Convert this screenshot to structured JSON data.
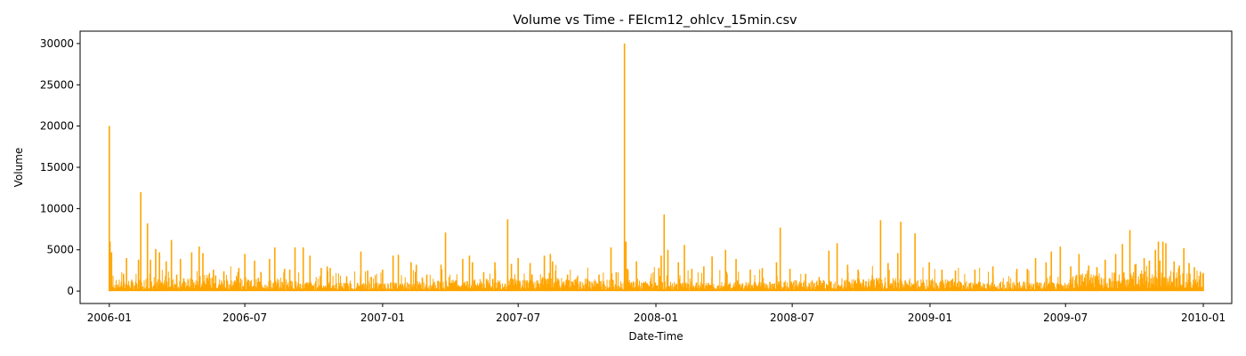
{
  "chart_data": {
    "type": "line",
    "title": "Volume vs Time - FEIcm12_ohlcv_15min.csv",
    "xlabel": "Date-Time",
    "ylabel": "Volume",
    "line_color": "#FFA500",
    "grid": false,
    "legend": "none",
    "xlim": [
      "2005-11-23",
      "2010-02-08"
    ],
    "ylim": [
      -1500,
      31500
    ],
    "x_ticks": [
      "2006-01",
      "2006-07",
      "2007-01",
      "2007-07",
      "2008-01",
      "2008-07",
      "2009-01",
      "2009-07",
      "2010-01"
    ],
    "y_ticks": [
      0,
      5000,
      10000,
      15000,
      20000,
      25000,
      30000
    ],
    "series": [
      {
        "x": [
          "2006-01-01",
          "2006-01-02",
          "2006-01-04",
          "2006-01-20",
          "2006-01-24",
          "2006-02-09",
          "2006-02-12",
          "2006-02-21",
          "2006-02-25",
          "2006-03-04",
          "2006-03-09",
          "2006-03-18",
          "2006-03-25",
          "2006-04-01",
          "2006-04-06",
          "2006-04-21",
          "2006-05-01",
          "2006-05-06",
          "2006-05-20",
          "2006-05-23",
          "2006-06-03",
          "2006-06-23",
          "2006-07-01",
          "2006-07-14",
          "2006-07-19",
          "2006-08-03",
          "2006-08-10",
          "2006-08-23",
          "2006-08-30",
          "2006-09-06",
          "2006-09-17",
          "2006-09-26",
          "2006-10-11",
          "2006-10-19",
          "2006-10-23",
          "2006-11-14",
          "2006-12-03",
          "2006-12-12",
          "2007-01-01",
          "2007-01-15",
          "2007-01-22",
          "2007-02-08",
          "2007-02-15",
          "2007-03-01",
          "2007-03-20",
          "2007-03-26",
          "2007-04-18",
          "2007-04-27",
          "2007-05-01",
          "2007-05-16",
          "2007-05-31",
          "2007-06-17",
          "2007-06-22",
          "2007-07-01",
          "2007-07-17",
          "2007-08-05",
          "2007-08-13",
          "2007-08-16",
          "2007-09-05",
          "2007-09-18",
          "2007-10-01",
          "2007-10-17",
          "2007-11-02",
          "2007-11-09",
          "2007-11-20",
          "2007-11-22",
          "2007-11-24",
          "2007-12-06",
          "2007-12-18",
          "2008-01-05",
          "2008-01-08",
          "2008-01-12",
          "2008-01-17",
          "2008-01-31",
          "2008-02-08",
          "2008-02-18",
          "2008-03-05",
          "2008-03-16",
          "2008-04-03",
          "2008-04-17",
          "2008-05-06",
          "2008-05-22",
          "2008-06-10",
          "2008-06-15",
          "2008-06-28",
          "2008-07-19",
          "2008-08-06",
          "2008-08-19",
          "2008-08-30",
          "2008-09-13",
          "2008-09-27",
          "2008-10-16",
          "2008-10-27",
          "2008-11-06",
          "2008-11-19",
          "2008-11-23",
          "2008-12-12",
          "2008-12-31",
          "2009-01-17",
          "2009-02-04",
          "2009-03-02",
          "2009-03-26",
          "2009-04-27",
          "2009-05-11",
          "2009-05-22",
          "2009-06-05",
          "2009-06-12",
          "2009-06-24",
          "2009-07-08",
          "2009-07-19",
          "2009-08-01",
          "2009-08-12",
          "2009-08-23",
          "2009-09-06",
          "2009-09-15",
          "2009-09-25",
          "2009-10-03",
          "2009-10-14",
          "2009-10-21",
          "2009-10-29",
          "2009-11-02",
          "2009-11-04",
          "2009-11-08",
          "2009-11-12",
          "2009-11-23",
          "2009-11-30",
          "2009-12-06",
          "2009-12-13",
          "2009-12-20",
          "2009-12-27",
          "2010-01-01"
        ],
        "y": [
          20000,
          6000,
          4700,
          2100,
          4000,
          3800,
          12000,
          8200,
          3800,
          5100,
          4700,
          3600,
          6200,
          2000,
          3900,
          4700,
          5400,
          4600,
          2600,
          1900,
          2400,
          2800,
          4500,
          3700,
          1600,
          3900,
          5300,
          2700,
          2600,
          5300,
          5300,
          4300,
          2800,
          3000,
          2800,
          1800,
          4800,
          2500,
          2600,
          4300,
          4400,
          3500,
          3200,
          2000,
          3200,
          7100,
          3900,
          4300,
          3500,
          2300,
          3500,
          8700,
          3300,
          4000,
          3400,
          4300,
          4500,
          3600,
          2000,
          1700,
          1500,
          2000,
          5300,
          2300,
          30000,
          6000,
          2700,
          3600,
          1000,
          2800,
          4300,
          9300,
          5000,
          3500,
          5600,
          2700,
          3000,
          4200,
          5000,
          3900,
          2600,
          2800,
          3500,
          7700,
          2700,
          2100,
          1700,
          4900,
          5800,
          3200,
          2600,
          1900,
          8600,
          3400,
          4600,
          8400,
          7000,
          3500,
          2600,
          2500,
          2600,
          3000,
          2700,
          2700,
          4000,
          3500,
          4800,
          5400,
          3000,
          4500,
          3100,
          2900,
          3800,
          4500,
          5700,
          7400,
          3300,
          4000,
          3700,
          5000,
          6000,
          3700,
          6000,
          5800,
          3600,
          3100,
          5200,
          3400,
          2900,
          1400,
          2200
        ]
      }
    ]
  }
}
